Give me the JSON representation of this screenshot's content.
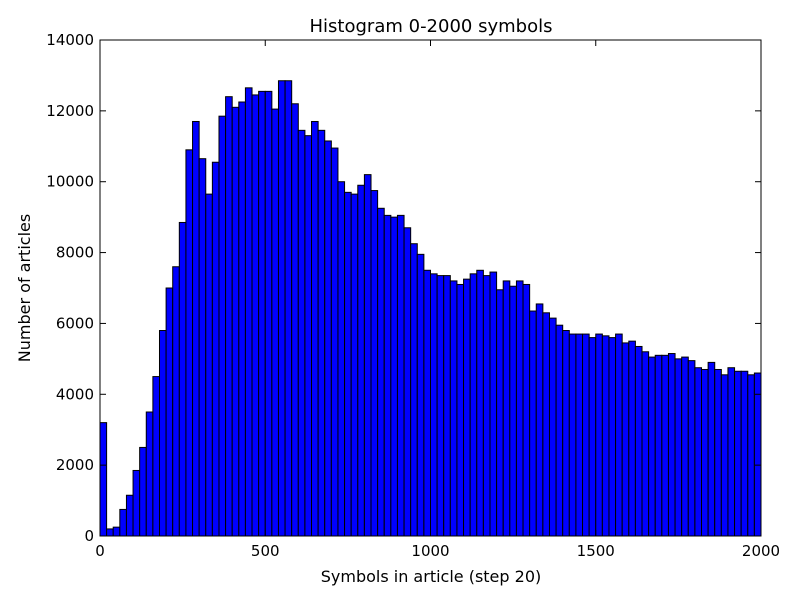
{
  "chart_data": {
    "type": "bar",
    "title": "Histogram 0-2000 symbols",
    "xlabel": "Symbols in article (step 20)",
    "ylabel": "Number of articles",
    "xlim": [
      0,
      2000
    ],
    "ylim": [
      0,
      14000
    ],
    "bin_width": 20,
    "x_ticks": [
      0,
      500,
      1000,
      1500,
      2000
    ],
    "y_ticks": [
      0,
      2000,
      4000,
      6000,
      8000,
      10000,
      12000,
      14000
    ],
    "grid": false,
    "legend": "none",
    "bar_color": "#0000ff",
    "edge_color": "#000000",
    "x": [
      0,
      20,
      40,
      60,
      80,
      100,
      120,
      140,
      160,
      180,
      200,
      220,
      240,
      260,
      280,
      300,
      320,
      340,
      360,
      380,
      400,
      420,
      440,
      460,
      480,
      500,
      520,
      540,
      560,
      580,
      600,
      620,
      640,
      660,
      680,
      700,
      720,
      740,
      760,
      780,
      800,
      820,
      840,
      860,
      880,
      900,
      920,
      940,
      960,
      980,
      1000,
      1020,
      1040,
      1060,
      1080,
      1100,
      1120,
      1140,
      1160,
      1180,
      1200,
      1220,
      1240,
      1260,
      1280,
      1300,
      1320,
      1340,
      1360,
      1380,
      1400,
      1420,
      1440,
      1460,
      1480,
      1500,
      1520,
      1540,
      1560,
      1580,
      1600,
      1620,
      1640,
      1660,
      1680,
      1700,
      1720,
      1740,
      1760,
      1780,
      1800,
      1820,
      1840,
      1860,
      1880,
      1900,
      1920,
      1940,
      1960,
      1980
    ],
    "values": [
      3200,
      200,
      250,
      750,
      1150,
      1850,
      2500,
      3500,
      4500,
      5800,
      7000,
      7600,
      8850,
      10900,
      11700,
      10650,
      9650,
      10550,
      11850,
      12400,
      12100,
      12250,
      12650,
      12450,
      12550,
      12550,
      12050,
      12850,
      12850,
      12200,
      11450,
      11300,
      11700,
      11450,
      11150,
      10950,
      10000,
      9700,
      9650,
      9900,
      10200,
      9750,
      9250,
      9050,
      9000,
      9050,
      8700,
      8250,
      7950,
      7500,
      7400,
      7350,
      7350,
      7200,
      7100,
      7250,
      7400,
      7500,
      7350,
      7450,
      6950,
      7200,
      7050,
      7200,
      7100,
      6350,
      6550,
      6300,
      6150,
      5950,
      5800,
      5700,
      5700,
      5700,
      5600,
      5700,
      5650,
      5600,
      5700,
      5450,
      5500,
      5350,
      5200,
      5050,
      5100,
      5100,
      5150,
      5000,
      5050,
      4950,
      4750,
      4700,
      4900,
      4700,
      4550,
      4750,
      4650,
      4650,
      4550,
      4600
    ]
  }
}
